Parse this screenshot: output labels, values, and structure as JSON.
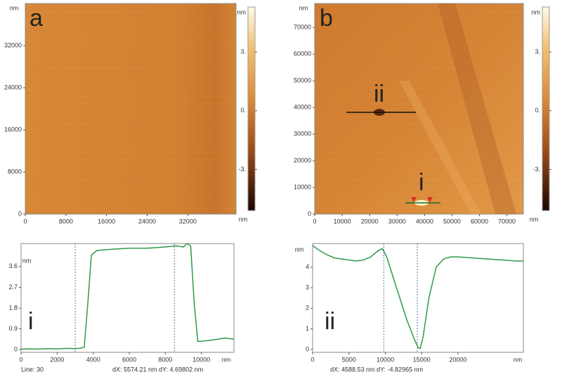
{
  "chart_data": [
    {
      "type": "image",
      "label": "a",
      "xunit": "nm",
      "yunit": "nm",
      "xlim": [
        0,
        41500
      ],
      "ylim": [
        0,
        40000
      ],
      "xticks": [
        0,
        8000,
        16000,
        24000,
        32000
      ],
      "yticks": [
        0,
        8000,
        16000,
        24000,
        32000
      ],
      "colorbar": {
        "unit": "nm",
        "clim": [
          -5.1,
          5.3
        ],
        "ticks": [
          {
            "value": -3,
            "label": "-3."
          },
          {
            "value": 0,
            "label": "0."
          },
          {
            "value": 3,
            "label": "3."
          }
        ]
      }
    },
    {
      "type": "image",
      "label": "b",
      "xunit": "nm",
      "yunit": "nm",
      "xlim": [
        0,
        76000
      ],
      "ylim": [
        0,
        79000
      ],
      "xticks": [
        0,
        10000,
        20000,
        30000,
        40000,
        50000,
        60000,
        70000
      ],
      "yticks": [
        0,
        10000,
        20000,
        30000,
        40000,
        50000,
        60000,
        70000
      ],
      "annotations": [
        "ii",
        "i"
      ],
      "colorbar": {
        "unit": "nm",
        "clim": [
          -5.1,
          5.3
        ],
        "ticks": [
          {
            "value": -3,
            "label": "-3."
          },
          {
            "value": 0,
            "label": "0."
          },
          {
            "value": 3,
            "label": "3."
          }
        ]
      }
    },
    {
      "type": "line",
      "label": "i",
      "xunit": "nm",
      "yunit": "nm",
      "color": "#2e9a48",
      "xlim": [
        0,
        11800
      ],
      "ylim": [
        -0.12,
        4.6
      ],
      "xticks": [
        0,
        2000,
        4000,
        6000,
        8000,
        10000
      ],
      "yticks": [
        0,
        0.9,
        1.8,
        2.7,
        3.6
      ],
      "x": [
        0,
        500,
        1000,
        1500,
        2000,
        2500,
        3000,
        3300,
        3500,
        3700,
        3900,
        4200,
        5000,
        6000,
        7000,
        8000,
        8600,
        9000,
        9200,
        9400,
        9600,
        9800,
        10500,
        11300,
        11800
      ],
      "values": [
        0.02,
        0.03,
        0.02,
        0.04,
        0.03,
        0.05,
        0.04,
        0.06,
        0.1,
        2.0,
        4.1,
        4.3,
        4.35,
        4.4,
        4.4,
        4.45,
        4.5,
        4.45,
        4.6,
        4.5,
        2.0,
        0.35,
        0.4,
        0.5,
        0.45
      ],
      "cursors": [
        3000,
        8500
      ],
      "status": [
        "Line: 30",
        "dX: 5574.21 nm dY: 4.69802 nm"
      ]
    },
    {
      "type": "line",
      "label": "ii",
      "xunit": "nm",
      "yunit": "nm",
      "color": "#2e9a48",
      "xlim": [
        0,
        29000
      ],
      "ylim": [
        -0.14,
        5.15
      ],
      "xticks": [
        0,
        5000,
        10000,
        15000,
        20000
      ],
      "yticks": [
        0,
        1,
        2,
        3,
        4
      ],
      "x": [
        0,
        1000,
        2000,
        3000,
        4000,
        5000,
        6000,
        7000,
        8000,
        9000,
        9600,
        10200,
        11000,
        12000,
        13000,
        14000,
        14500,
        14800,
        15200,
        16000,
        17000,
        18000,
        19000,
        20000,
        22000,
        24000,
        26000,
        28000,
        29000
      ],
      "values": [
        5.05,
        4.8,
        4.6,
        4.45,
        4.4,
        4.35,
        4.3,
        4.35,
        4.5,
        4.8,
        4.9,
        4.5,
        3.6,
        2.5,
        1.4,
        0.5,
        0.1,
        0.05,
        0.6,
        2.5,
        4.0,
        4.4,
        4.5,
        4.5,
        4.45,
        4.4,
        4.35,
        4.3,
        4.3
      ],
      "cursors": [
        9800,
        14400
      ],
      "status": [
        "dX: 4588.53 nm dY: -4.82965 nm"
      ]
    }
  ]
}
